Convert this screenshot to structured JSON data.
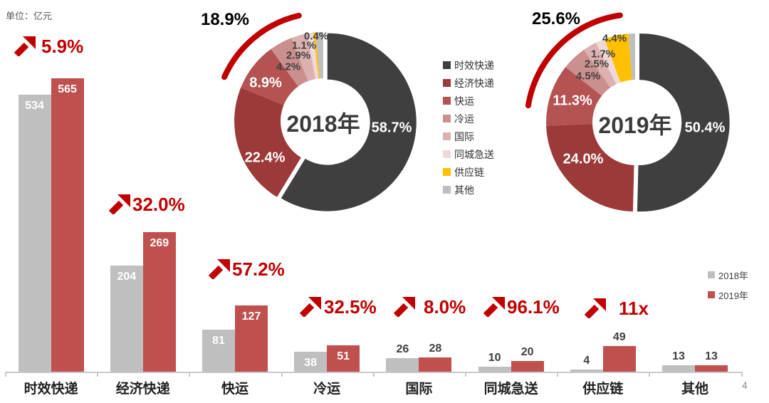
{
  "unit_label": "单位：亿元",
  "page_number": "4",
  "colors": {
    "accent": "#C00000",
    "axis": "#C9C9C9",
    "text_dark": "#3F3F3F",
    "bar_value_inside": "#FFFFFF"
  },
  "series_legend": [
    {
      "label": "2018年",
      "color": "#BFBFBF"
    },
    {
      "label": "2019年",
      "color": "#C0504D"
    }
  ],
  "category_legend": [
    {
      "label": "时效快递",
      "color": "#3F3F3F"
    },
    {
      "label": "经济快递",
      "color": "#9B3A38"
    },
    {
      "label": "快运",
      "color": "#B45351"
    },
    {
      "label": "冷运",
      "color": "#CB8F8E"
    },
    {
      "label": "国际",
      "color": "#DCB1B0"
    },
    {
      "label": "同城急送",
      "color": "#EFD9D8"
    },
    {
      "label": "供应链",
      "color": "#FFC000"
    },
    {
      "label": "其他",
      "color": "#BFBFBF"
    }
  ],
  "chart_data": [
    {
      "type": "bar",
      "unit": "亿元",
      "categories": [
        "时效快递",
        "经济快递",
        "快运",
        "冷运",
        "国际",
        "同城急送",
        "供应链",
        "其他"
      ],
      "series": [
        {
          "name": "2018年",
          "color": "#BFBFBF",
          "values": [
            534,
            204,
            81,
            38,
            26,
            10,
            4,
            13
          ]
        },
        {
          "name": "2019年",
          "color": "#C0504D",
          "values": [
            565,
            269,
            127,
            51,
            28,
            20,
            49,
            13
          ]
        }
      ],
      "growth_annotations": [
        "5.9%",
        "32.0%",
        "57.2%",
        "32.5%",
        "8.0%",
        "96.1%",
        "11x"
      ],
      "ylim": [
        0,
        580
      ],
      "legend_position": "right"
    },
    {
      "type": "pie",
      "title": "2018年",
      "labels": [
        "时效快递",
        "经济快递",
        "快运",
        "冷运",
        "国际",
        "同城急送",
        "供应链",
        "其他"
      ],
      "values": [
        58.7,
        22.4,
        8.9,
        4.2,
        2.9,
        1.1,
        0.4,
        1.4
      ],
      "shown_labels": [
        "58.7%",
        "22.4%",
        "8.9%",
        "4.2%",
        "2.9%",
        "1.1%",
        "0.4%",
        ""
      ],
      "arc_annotation": "18.9%"
    },
    {
      "type": "pie",
      "title": "2019年",
      "labels": [
        "时效快递",
        "经济快递",
        "快运",
        "冷运",
        "国际",
        "同城急送",
        "供应链",
        "其他"
      ],
      "values": [
        50.4,
        24.0,
        11.3,
        4.5,
        2.5,
        1.7,
        4.4,
        1.2
      ],
      "shown_labels": [
        "50.4%",
        "24.0%",
        "11.3%",
        "4.5%",
        "2.5%",
        "1.7%",
        "4.4%",
        ""
      ],
      "arc_annotation": "25.6%"
    }
  ]
}
